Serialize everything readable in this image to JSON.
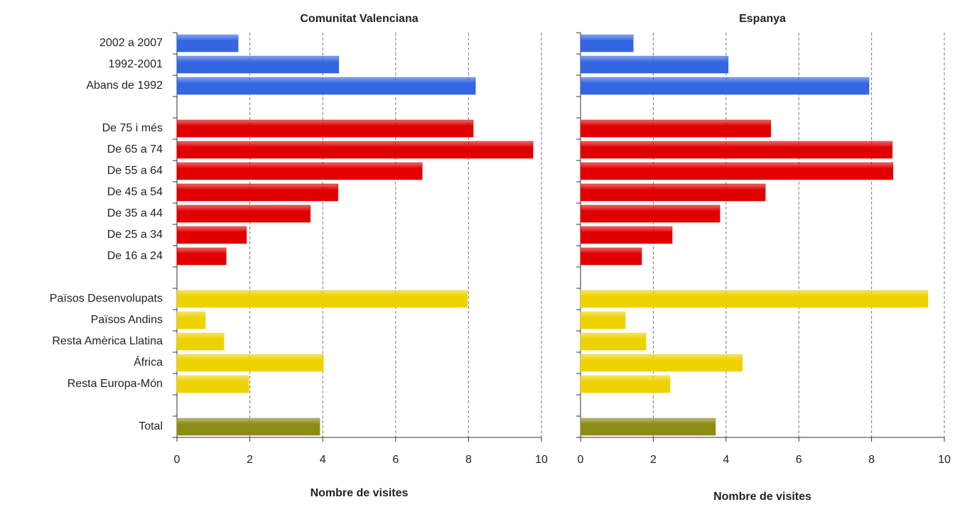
{
  "chart_data": [
    {
      "type": "bar",
      "title": "Comunitat Valenciana",
      "xlabel": "Nombre de visites",
      "categories": [
        "2002 a 2007",
        "1992-2001",
        "Abans de 1992",
        null,
        "De 75 i més",
        "De 65 a 74",
        "De 55 a 64",
        "De 45 a 54",
        "De 35 a 44",
        "De 25 a 34",
        "De 16 a 24",
        null,
        "Països Desenvolupats",
        "Països Andins",
        "Resta Amèrica Llatina",
        "África",
        "Resta Europa-Món",
        null,
        "Total"
      ],
      "values": [
        1.68,
        4.44,
        8.19,
        null,
        8.13,
        9.77,
        6.73,
        4.42,
        3.66,
        1.91,
        1.35,
        null,
        7.97,
        0.78,
        1.29,
        4.02,
        1.97,
        null,
        3.92
      ],
      "colors": [
        "#3366e0",
        "#3366e0",
        "#3366e0",
        null,
        "#e00000",
        "#e00000",
        "#e00000",
        "#e00000",
        "#e00000",
        "#e00000",
        "#e00000",
        null,
        "#eed200",
        "#eed200",
        "#eed200",
        "#eed200",
        "#eed200",
        null,
        "#8c8c14"
      ],
      "xlim": [
        0,
        10
      ],
      "xticks": [
        0,
        2,
        4,
        6,
        8,
        10
      ],
      "grid": true
    },
    {
      "type": "bar",
      "title": "Espanya",
      "xlabel": "Nombre de visites",
      "values": [
        1.45,
        4.06,
        7.93,
        null,
        5.23,
        8.57,
        8.59,
        5.08,
        3.83,
        2.52,
        1.68,
        null,
        9.55,
        1.23,
        1.8,
        4.45,
        2.46,
        null,
        3.71
      ],
      "colors": [
        "#3366e0",
        "#3366e0",
        "#3366e0",
        null,
        "#e00000",
        "#e00000",
        "#e00000",
        "#e00000",
        "#e00000",
        "#e00000",
        "#e00000",
        null,
        "#eed200",
        "#eed200",
        "#eed200",
        "#eed200",
        "#eed200",
        null,
        "#8c8c14"
      ],
      "xlim": [
        0,
        10
      ],
      "xticks": [
        0,
        2,
        4,
        6,
        8,
        10
      ],
      "grid": true
    }
  ]
}
